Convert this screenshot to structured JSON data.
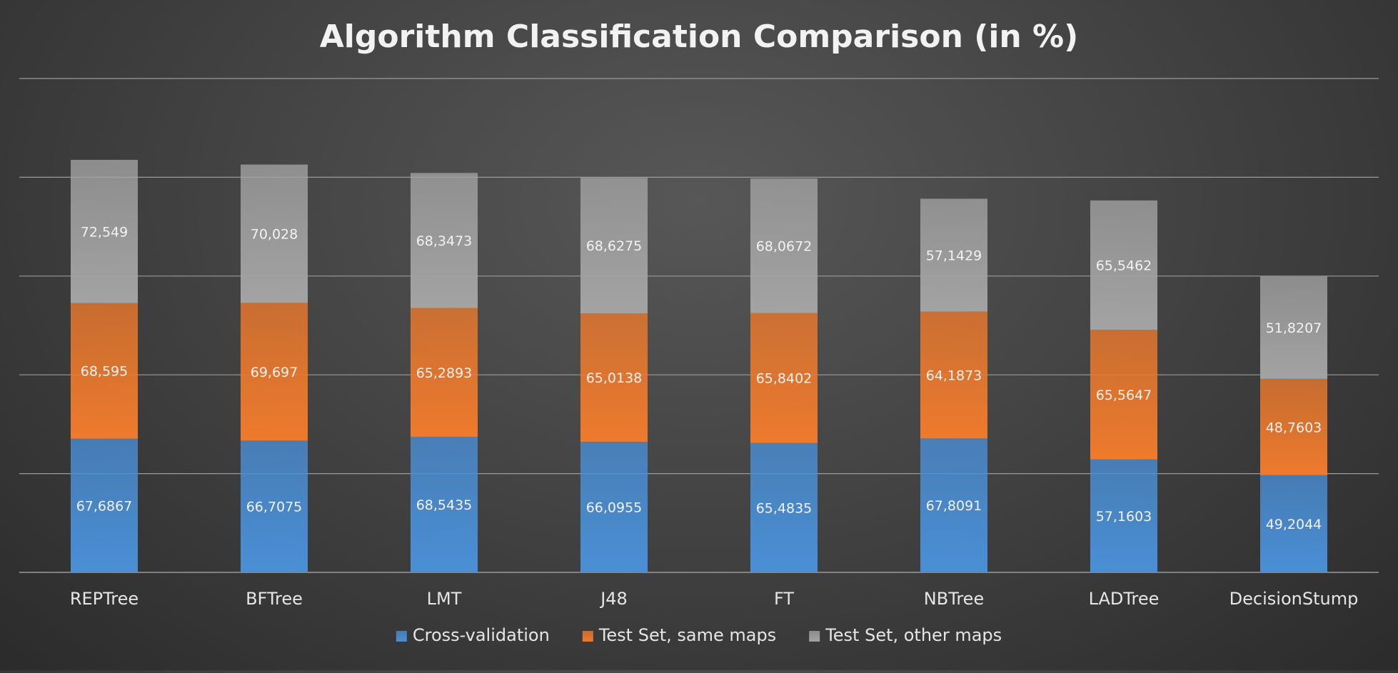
{
  "chart_data": {
    "type": "bar",
    "stacked": true,
    "title": "Algorithm Classification Comparison (in %)",
    "categories": [
      "REPTree",
      "BFTree",
      "LMT",
      "J48",
      "FT",
      "NBTree",
      "LADTree",
      "DecisionStump"
    ],
    "series": [
      {
        "name": "Cross-validation",
        "color": "#4a8fd6",
        "values": [
          67.6867,
          66.7075,
          68.5435,
          66.0955,
          65.4835,
          67.8091,
          57.1603,
          49.2044
        ],
        "labels": [
          "67,6867",
          "66,7075",
          "68,5435",
          "66,0955",
          "65,4835",
          "67,8091",
          "57,1603",
          "49,2044"
        ]
      },
      {
        "name": "Test Set, same maps",
        "color": "#ee7a2d",
        "values": [
          68.595,
          69.697,
          65.2893,
          65.0138,
          65.8402,
          64.1873,
          65.5647,
          48.7603
        ],
        "labels": [
          "68,595",
          "69,697",
          "65,2893",
          "65,0138",
          "65,8402",
          "64,1873",
          "65,5647",
          "48,7603"
        ]
      },
      {
        "name": "Test Set, other maps",
        "color": "#a3a3a3",
        "values": [
          72.549,
          70.028,
          68.3473,
          68.6275,
          68.0672,
          57.1429,
          65.5462,
          51.8207
        ],
        "labels": [
          "72,549",
          "70,028",
          "68,3473",
          "68,6275",
          "68,0672",
          "57,1429",
          "65,5462",
          "51,8207"
        ]
      }
    ],
    "ylim": [
      0,
      250
    ],
    "gridlines": true,
    "y_tick_labels_shown": false,
    "legend_position": "bottom"
  }
}
